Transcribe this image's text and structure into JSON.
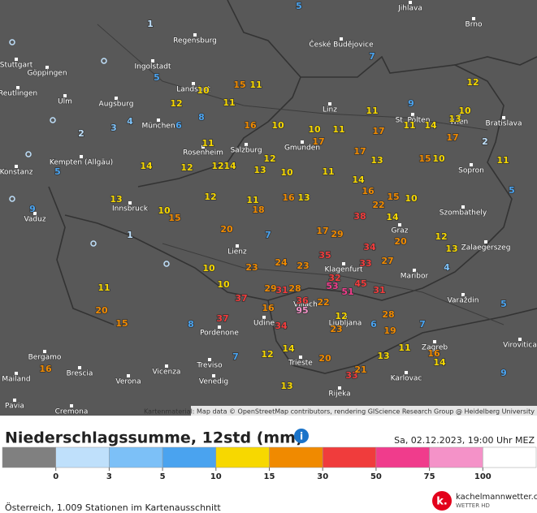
{
  "map": {
    "cities": [
      "Jihlava",
      "České Budějovice",
      "Brno",
      "Regensburg",
      "Ingolstadt",
      "Stuttgart",
      "Göppingen",
      "Reutlingen",
      "Ulm",
      "Augsburg",
      "Landshut",
      "München",
      "Linz",
      "St. Pölten",
      "Wien",
      "Bratislava",
      "Kempten (Allgäu)",
      "Rosenheim",
      "Salzburg",
      "Gmunden",
      "Sopron",
      "Konstanz",
      "Vaduz",
      "Innsbruck",
      "Szombathely",
      "Graz",
      "Zalaegerszeg",
      "Lienz",
      "Maribor",
      "Klagenfurt",
      "Villach",
      "Varaždin",
      "Udine",
      "Ljubljana",
      "Pordenone",
      "Zagreb",
      "Bergamo",
      "Treviso",
      "Trieste",
      "Vicenza",
      "Venedig",
      "Karlovac",
      "Brescia",
      "Verona",
      "Mailand",
      "Rijeka",
      "Pavia",
      "Cremona",
      "Virovitica"
    ],
    "stations": [
      5,
      7,
      12,
      9,
      11,
      10,
      14,
      11,
      13,
      17,
      17,
      15,
      10,
      11,
      17,
      10,
      11,
      10,
      16,
      15,
      11,
      10,
      11,
      12,
      14,
      12,
      12,
      14,
      11,
      10,
      13,
      12,
      12,
      11,
      18,
      11,
      13,
      14,
      16,
      17,
      13,
      16,
      15,
      22,
      10,
      38,
      29,
      17,
      20,
      14,
      20,
      12,
      13,
      34,
      27,
      35,
      33,
      24,
      23,
      23,
      32,
      53,
      51,
      45,
      31,
      29,
      31,
      28,
      36,
      95,
      22,
      37,
      37,
      16,
      34,
      12,
      23,
      28,
      19,
      20,
      13,
      11,
      16,
      14,
      33,
      21,
      13,
      14,
      12,
      10,
      13,
      15,
      20,
      15,
      16,
      10,
      10,
      11,
      9,
      5,
      2,
      1,
      0,
      0,
      0,
      0,
      0,
      0,
      0,
      3,
      4,
      6,
      8,
      5,
      7,
      8,
      7,
      6,
      7,
      5,
      9,
      4,
      2,
      5,
      1
    ],
    "attribution": "Kartenmaterial: Map data © OpenStreetMap contributors, rendering GIScience Research Group @ Heidelberg University",
    "legend": {
      "title": "Niederschlagssumme, 12std (mm)",
      "date": "Sa, 02.12.2023, 19:00 Uhr MEZ",
      "ticks": [
        0,
        3,
        5,
        10,
        15,
        30,
        50,
        75,
        100
      ],
      "colors": [
        "#808080",
        "#bfe0fb",
        "#7cc0f7",
        "#4aa3ef",
        "#f7d800",
        "#f08a00",
        "#f03c3c",
        "#f03c8c",
        "#f492c8",
        "#ffffff"
      ]
    },
    "footer": "Österreich, 1.009 Stationen im Kartenausschnitt",
    "logo": {
      "name": "kachelmannwetter.com",
      "tagline": "WETTER HD"
    }
  }
}
